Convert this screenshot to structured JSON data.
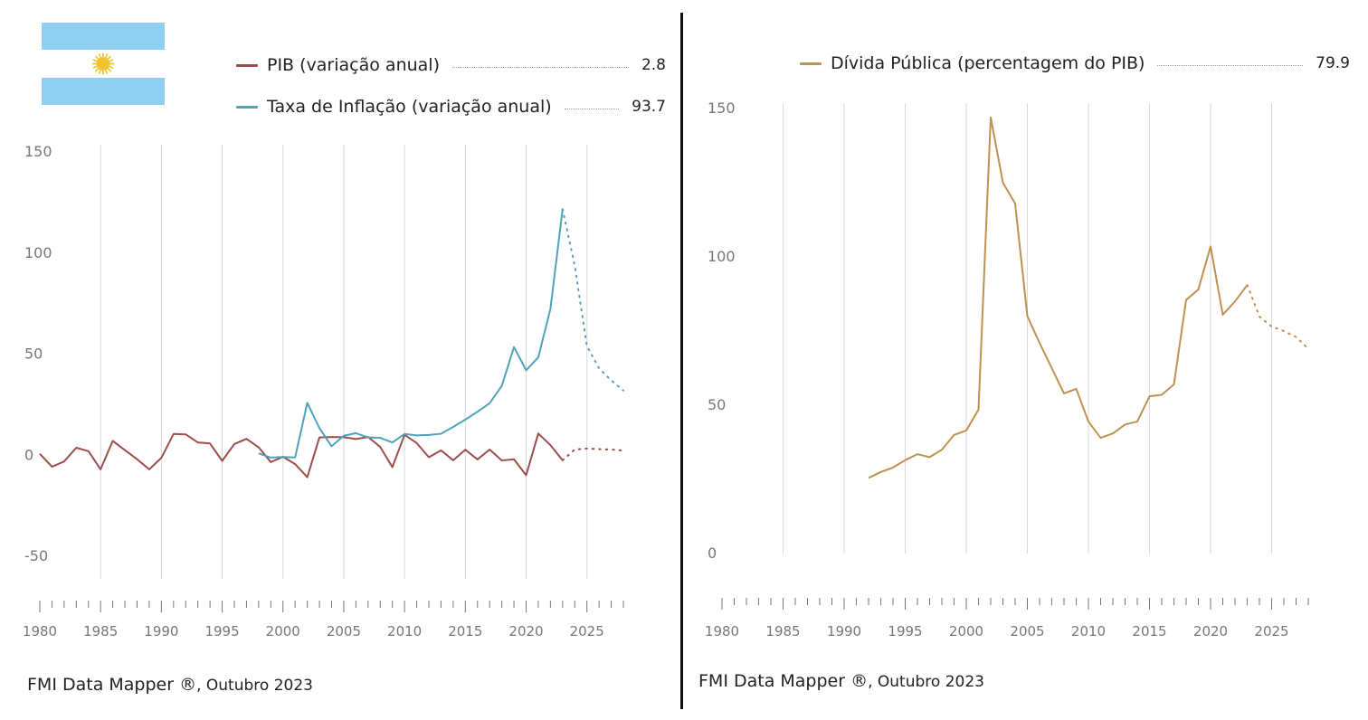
{
  "colors": {
    "pib": "#9c4e4c",
    "inflation": "#4fa3b9",
    "debt": "#bf9150",
    "grid": "#d9d9d9",
    "axis_text": "#777777",
    "flag_blue": "#8fd0f2",
    "flag_sun": "#f2c230"
  },
  "flag": {
    "icon": "argentina-flag-icon"
  },
  "left_panel": {
    "legend": [
      {
        "label": "PIB (variação anual)",
        "value": "2.8",
        "color_key": "pib"
      },
      {
        "label": "Taxa de Inflação (variação anual)",
        "value": "93.7",
        "color_key": "inflation"
      }
    ],
    "footer": {
      "source": "FMI Data Mapper ®",
      "date": ", Outubro 2023"
    }
  },
  "right_panel": {
    "legend": [
      {
        "label": "Dívida Pública (percentagem do PIB)",
        "value": "79.9",
        "color_key": "debt"
      }
    ],
    "footer": {
      "source": "FMI Data Mapper ®",
      "date": ", Outubro 2023"
    }
  },
  "chart_data": [
    {
      "type": "line",
      "title": "",
      "xlabel": "",
      "ylabel": "",
      "xlim": [
        1980,
        2028
      ],
      "ylim": [
        -50,
        150
      ],
      "y_ticks": [
        -50,
        0,
        50,
        100,
        150
      ],
      "x_ticks": [
        1980,
        1985,
        1990,
        1995,
        2000,
        2005,
        2010,
        2015,
        2020,
        2025
      ],
      "grid": true,
      "projection_from": 2023,
      "series": [
        {
          "name": "PIB (variação anual)",
          "color_key": "pib",
          "x": [
            1980,
            1981,
            1982,
            1983,
            1984,
            1985,
            1986,
            1987,
            1988,
            1989,
            1990,
            1991,
            1992,
            1993,
            1994,
            1995,
            1996,
            1997,
            1998,
            1999,
            2000,
            2001,
            2002,
            2003,
            2004,
            2005,
            2006,
            2007,
            2008,
            2009,
            2010,
            2011,
            2012,
            2013,
            2014,
            2015,
            2016,
            2017,
            2018,
            2019,
            2020,
            2021,
            2022,
            2023,
            2024,
            2025,
            2026,
            2027,
            2028
          ],
          "y": [
            0.7,
            -5.7,
            -3.1,
            3.7,
            2.0,
            -7.0,
            7.1,
            2.5,
            -2.0,
            -7.0,
            -1.3,
            10.5,
            10.3,
            6.3,
            5.8,
            -2.8,
            5.5,
            8.1,
            3.9,
            -3.4,
            -0.8,
            -4.4,
            -10.9,
            8.8,
            9.0,
            8.9,
            8.0,
            9.0,
            4.1,
            -5.9,
            10.1,
            6.0,
            -1.0,
            2.4,
            -2.5,
            2.7,
            -2.1,
            2.8,
            -2.6,
            -2.0,
            -9.9,
            10.7,
            5.0,
            -2.5,
            2.8,
            3.3,
            3.0,
            2.8,
            2.3
          ]
        },
        {
          "name": "Taxa de Inflação (variação anual)",
          "color_key": "inflation",
          "x": [
            1998,
            1999,
            2000,
            2001,
            2002,
            2003,
            2004,
            2005,
            2006,
            2007,
            2008,
            2009,
            2010,
            2011,
            2012,
            2013,
            2014,
            2015,
            2016,
            2017,
            2018,
            2019,
            2020,
            2021,
            2022,
            2023,
            2024,
            2025,
            2026,
            2027,
            2028
          ],
          "y": [
            0.9,
            -1.2,
            -0.9,
            -1.1,
            25.9,
            13.4,
            4.4,
            9.6,
            10.9,
            8.8,
            8.6,
            6.3,
            10.5,
            9.8,
            10.0,
            10.6,
            14.0,
            17.6,
            21.5,
            25.7,
            34.3,
            53.5,
            42.0,
            48.4,
            72.4,
            121.7,
            93.7,
            54.0,
            43.0,
            37.0,
            32.0
          ]
        }
      ]
    },
    {
      "type": "line",
      "title": "",
      "xlabel": "",
      "ylabel": "",
      "xlim": [
        1980,
        2028
      ],
      "ylim": [
        0,
        150
      ],
      "y_ticks": [
        0,
        50,
        100,
        150
      ],
      "x_ticks": [
        1980,
        1985,
        1990,
        1995,
        2000,
        2005,
        2010,
        2015,
        2020,
        2025
      ],
      "grid": true,
      "projection_from": 2023,
      "series": [
        {
          "name": "Dívida Pública (percentagem do PIB)",
          "color_key": "debt",
          "x": [
            1992,
            1993,
            1994,
            1995,
            1996,
            1997,
            1998,
            1999,
            2000,
            2001,
            2002,
            2003,
            2004,
            2005,
            2006,
            2007,
            2008,
            2009,
            2010,
            2011,
            2012,
            2013,
            2014,
            2015,
            2016,
            2017,
            2018,
            2019,
            2020,
            2021,
            2022,
            2023,
            2024,
            2025,
            2026,
            2027,
            2028
          ],
          "y": [
            25.5,
            27.5,
            29.0,
            31.5,
            33.5,
            32.5,
            35.0,
            40.0,
            41.5,
            48.5,
            147.0,
            125.0,
            118.0,
            80.0,
            71.0,
            62.5,
            54.0,
            55.5,
            44.5,
            39.0,
            40.5,
            43.5,
            44.5,
            53.0,
            53.5,
            57.0,
            85.5,
            89.0,
            103.5,
            80.5,
            85.0,
            90.5,
            79.9,
            76.5,
            75.0,
            73.0,
            69.0
          ]
        }
      ]
    }
  ]
}
